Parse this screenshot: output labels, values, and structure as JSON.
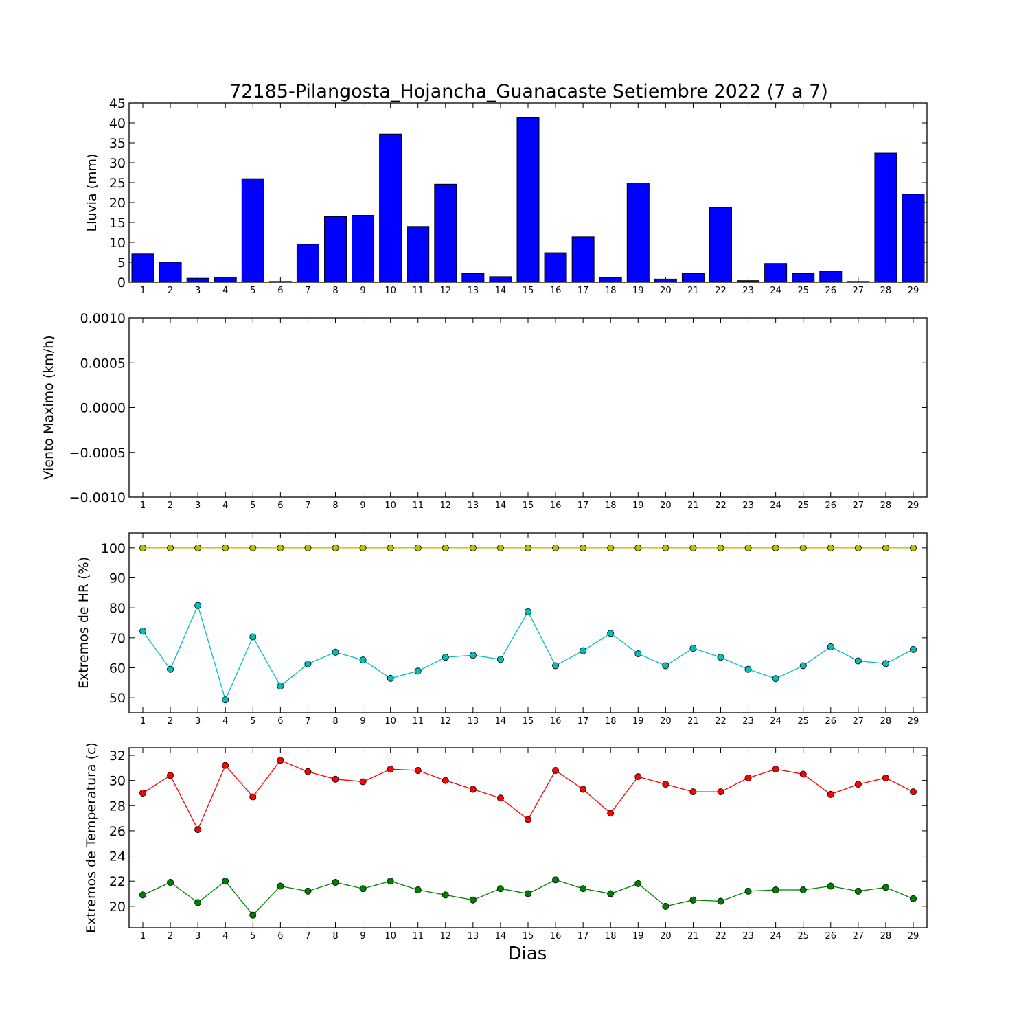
{
  "figure": {
    "title": "72185-Pilangosta_Hojancha_Guanacaste Setiembre 2022  (7 a 7)",
    "xlabel": "Dias"
  },
  "chart_data": [
    {
      "type": "bar",
      "ylabel": "Lluvia (mm)",
      "categories": [
        "1",
        "2",
        "3",
        "4",
        "5",
        "6",
        "7",
        "8",
        "9",
        "10",
        "11",
        "12",
        "13",
        "14",
        "15",
        "16",
        "17",
        "18",
        "19",
        "20",
        "21",
        "22",
        "23",
        "24",
        "25",
        "26",
        "27",
        "28",
        "29"
      ],
      "values": [
        7.1,
        5.0,
        1.0,
        1.3,
        26.0,
        0.2,
        9.5,
        16.5,
        16.8,
        37.2,
        14.0,
        24.6,
        2.2,
        1.4,
        41.3,
        7.4,
        11.4,
        1.2,
        24.9,
        0.8,
        2.2,
        18.8,
        0.4,
        4.7,
        2.2,
        2.8,
        0.2,
        32.4,
        22.1
      ],
      "ylim": [
        0,
        45
      ],
      "yticks": [
        "0",
        "5",
        "10",
        "15",
        "20",
        "25",
        "30",
        "35",
        "40",
        "45"
      ],
      "colors": {
        "bar": "#0000ff"
      }
    },
    {
      "type": "line",
      "ylabel": "Viento Maximo (km/h)",
      "x": [
        1,
        2,
        3,
        4,
        5,
        6,
        7,
        8,
        9,
        10,
        11,
        12,
        13,
        14,
        15,
        16,
        17,
        18,
        19,
        20,
        21,
        22,
        23,
        24,
        25,
        26,
        27,
        28,
        29
      ],
      "series": [],
      "ylim": [
        -0.001,
        0.001
      ],
      "yticks": [
        "0.0010",
        "0.0005",
        "0.0000",
        "−0.0005",
        "−0.0010"
      ]
    },
    {
      "type": "line",
      "ylabel": "Extremos de HR (%)",
      "x": [
        1,
        2,
        3,
        4,
        5,
        6,
        7,
        8,
        9,
        10,
        11,
        12,
        13,
        14,
        15,
        16,
        17,
        18,
        19,
        20,
        21,
        22,
        23,
        24,
        25,
        26,
        27,
        28,
        29
      ],
      "series": [
        {
          "values": [
            100,
            100,
            100,
            100,
            100,
            100,
            100,
            100,
            100,
            100,
            100,
            100,
            100,
            100,
            100,
            100,
            100,
            100,
            100,
            100,
            100,
            100,
            100,
            100,
            100,
            100,
            100,
            100,
            100
          ],
          "color": "#bfbf00"
        },
        {
          "values": [
            72.2,
            59.5,
            80.8,
            49.3,
            70.3,
            53.9,
            61.3,
            65.2,
            62.6,
            56.5,
            58.9,
            63.5,
            64.2,
            62.8,
            78.7,
            60.7,
            65.7,
            71.5,
            64.7,
            60.7,
            66.5,
            63.5,
            59.5,
            56.4,
            60.7,
            67.0,
            62.3,
            61.4,
            66.1
          ],
          "color": "#00bfbf"
        }
      ],
      "ylim": [
        45,
        105
      ],
      "yticks": [
        "50",
        "60",
        "70",
        "80",
        "90",
        "100"
      ]
    },
    {
      "type": "line",
      "ylabel": "Extremos de Temperatura (c)",
      "x": [
        1,
        2,
        3,
        4,
        5,
        6,
        7,
        8,
        9,
        10,
        11,
        12,
        13,
        14,
        15,
        16,
        17,
        18,
        19,
        20,
        21,
        22,
        23,
        24,
        25,
        26,
        27,
        28,
        29
      ],
      "series": [
        {
          "values": [
            29.0,
            30.4,
            26.1,
            31.2,
            28.7,
            31.6,
            30.7,
            30.1,
            29.9,
            30.9,
            30.8,
            30.0,
            29.3,
            28.6,
            26.9,
            30.8,
            29.3,
            27.4,
            30.3,
            29.7,
            29.1,
            29.1,
            30.2,
            30.9,
            30.5,
            28.9,
            29.7,
            30.2,
            29.1
          ],
          "color": "#ff0000"
        },
        {
          "values": [
            20.9,
            21.9,
            20.3,
            22.0,
            19.3,
            21.6,
            21.2,
            21.9,
            21.4,
            22.0,
            21.3,
            20.9,
            20.5,
            21.4,
            21.0,
            22.1,
            21.4,
            21.0,
            21.8,
            20.0,
            20.5,
            20.4,
            21.2,
            21.3,
            21.3,
            21.6,
            21.2,
            21.5,
            20.6
          ],
          "color": "#008000"
        }
      ],
      "ylim": [
        18.3,
        32.6
      ],
      "yticks": [
        "20",
        "22",
        "24",
        "26",
        "28",
        "30",
        "32"
      ]
    }
  ]
}
